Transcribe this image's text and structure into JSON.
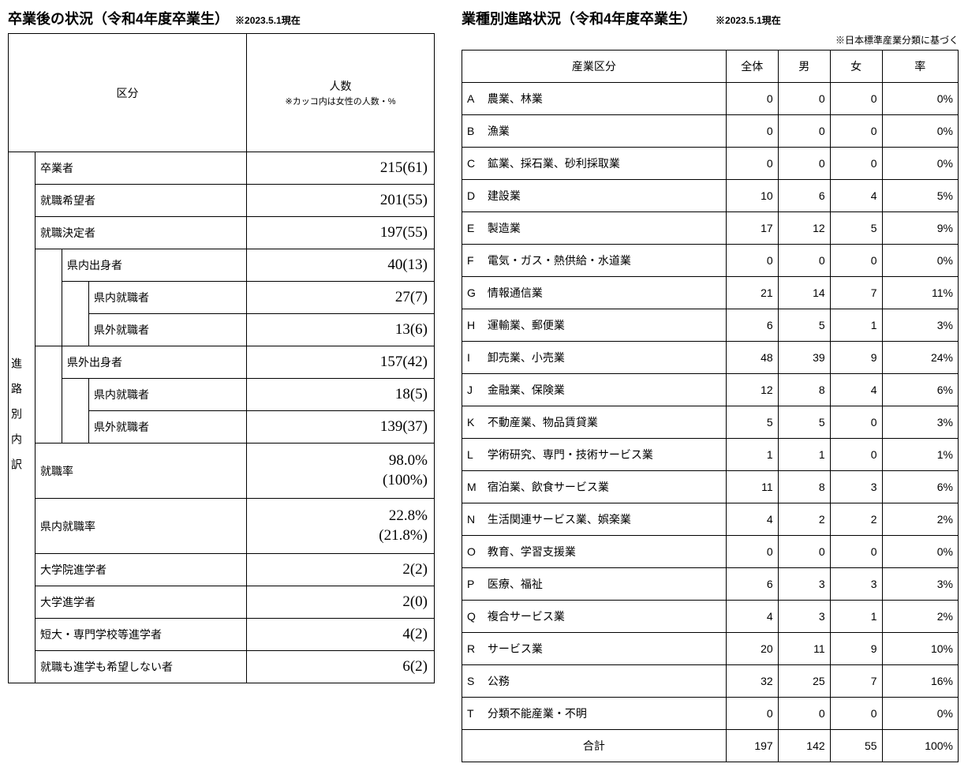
{
  "left": {
    "title": "卒業後の状況（令和4年度卒業生）",
    "note": "※2023.5.1現在",
    "header_col1": "区分",
    "header_col2": "人数",
    "header_col2_sub": "※カッコ内は女性の人数・%",
    "side_label": "進路別内訳",
    "rows": [
      {
        "indent": 0,
        "label": "卒業者",
        "value": "215(61)"
      },
      {
        "indent": 0,
        "label": "就職希望者",
        "value": "201(55)"
      },
      {
        "indent": 0,
        "label": "就職決定者",
        "value": "197(55)"
      },
      {
        "indent": 1,
        "label": "県内出身者",
        "value": "40(13)"
      },
      {
        "indent": 2,
        "label": "県内就職者",
        "value": "27(7)"
      },
      {
        "indent": 2,
        "label": "県外就職者",
        "value": "13(6)"
      },
      {
        "indent": 1,
        "label": "県外出身者",
        "value": "157(42)"
      },
      {
        "indent": 2,
        "label": "県内就職者",
        "value": "18(5)"
      },
      {
        "indent": 2,
        "label": "県外就職者",
        "value": "139(37)"
      },
      {
        "indent": 0,
        "label": "就職率",
        "value": "98.0%<br>(100%)",
        "tall": true
      },
      {
        "indent": 0,
        "label": "県内就職率",
        "value": "22.8%<br>(21.8%)",
        "tall": true
      },
      {
        "indent": 0,
        "label": "大学院進学者",
        "value": "2(2)"
      },
      {
        "indent": 0,
        "label": "大学進学者",
        "value": "2(0)"
      },
      {
        "indent": 0,
        "label": "短大・専門学校等進学者",
        "value": "4(2)"
      },
      {
        "indent": 0,
        "label": "就職も進学も希望しない者",
        "value": "6(2)"
      }
    ]
  },
  "right": {
    "title": "業種別進路状況（令和4年度卒業生）",
    "note": "※2023.5.1現在",
    "subnote": "※日本標準産業分類に基づく",
    "headers": [
      "産業区分",
      "全体",
      "男",
      "女",
      "率"
    ],
    "rows": [
      {
        "c": "A",
        "name": "農業、林業",
        "t": 0,
        "m": 0,
        "f": 0,
        "r": "0%"
      },
      {
        "c": "B",
        "name": "漁業",
        "t": 0,
        "m": 0,
        "f": 0,
        "r": "0%"
      },
      {
        "c": "C",
        "name": "鉱業、採石業、砂利採取業",
        "t": 0,
        "m": 0,
        "f": 0,
        "r": "0%"
      },
      {
        "c": "D",
        "name": "建設業",
        "t": 10,
        "m": 6,
        "f": 4,
        "r": "5%"
      },
      {
        "c": "E",
        "name": "製造業",
        "t": 17,
        "m": 12,
        "f": 5,
        "r": "9%"
      },
      {
        "c": "F",
        "name": "電気・ガス・熱供給・水道業",
        "t": 0,
        "m": 0,
        "f": 0,
        "r": "0%"
      },
      {
        "c": "G",
        "name": "情報通信業",
        "t": 21,
        "m": 14,
        "f": 7,
        "r": "11%"
      },
      {
        "c": "H",
        "name": "運輸業、郵便業",
        "t": 6,
        "m": 5,
        "f": 1,
        "r": "3%"
      },
      {
        "c": "I",
        "name": "卸売業、小売業",
        "t": 48,
        "m": 39,
        "f": 9,
        "r": "24%"
      },
      {
        "c": "J",
        "name": "金融業、保険業",
        "t": 12,
        "m": 8,
        "f": 4,
        "r": "6%"
      },
      {
        "c": "K",
        "name": "不動産業、物品賃貸業",
        "t": 5,
        "m": 5,
        "f": 0,
        "r": "3%"
      },
      {
        "c": "L",
        "name": "学術研究、専門・技術サービス業",
        "t": 1,
        "m": 1,
        "f": 0,
        "r": "1%"
      },
      {
        "c": "M",
        "name": "宿泊業、飲食サービス業",
        "t": 11,
        "m": 8,
        "f": 3,
        "r": "6%"
      },
      {
        "c": "N",
        "name": "生活関連サービス業、娯楽業",
        "t": 4,
        "m": 2,
        "f": 2,
        "r": "2%"
      },
      {
        "c": "O",
        "name": "教育、学習支援業",
        "t": 0,
        "m": 0,
        "f": 0,
        "r": "0%"
      },
      {
        "c": "P",
        "name": "医療、福祉",
        "t": 6,
        "m": 3,
        "f": 3,
        "r": "3%"
      },
      {
        "c": "Q",
        "name": "複合サービス業",
        "t": 4,
        "m": 3,
        "f": 1,
        "r": "2%"
      },
      {
        "c": "R",
        "name": "サービス業",
        "t": 20,
        "m": 11,
        "f": 9,
        "r": "10%"
      },
      {
        "c": "S",
        "name": "公務",
        "t": 32,
        "m": 25,
        "f": 7,
        "r": "16%"
      },
      {
        "c": "T",
        "name": "分類不能産業・不明",
        "t": 0,
        "m": 0,
        "f": 0,
        "r": "0%"
      }
    ],
    "total": {
      "label": "合計",
      "t": 197,
      "m": 142,
      "f": 55,
      "r": "100%"
    }
  }
}
